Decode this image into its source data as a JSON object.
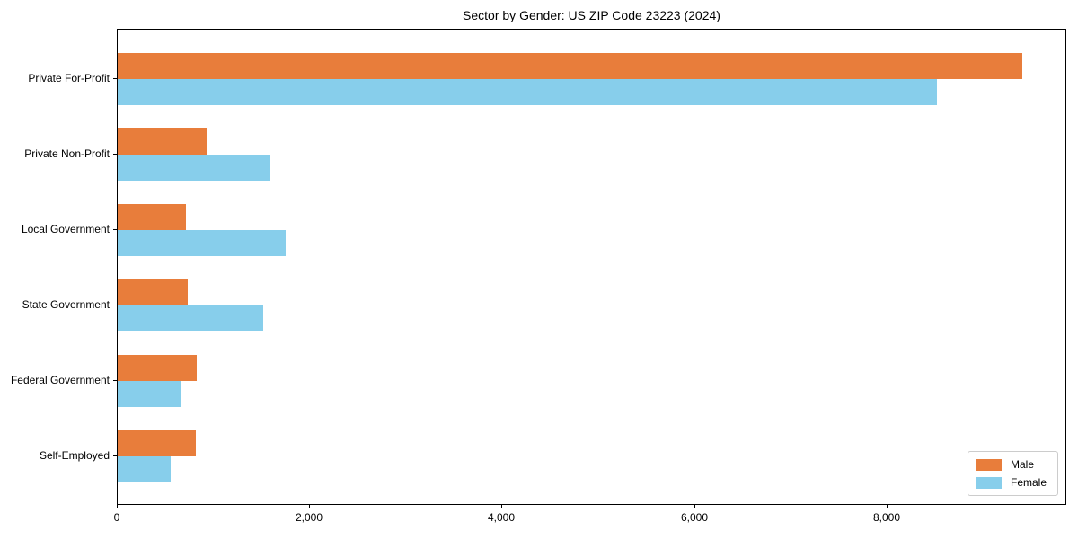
{
  "chart_data": {
    "type": "bar",
    "orientation": "horizontal",
    "title": "Sector by Gender: US ZIP Code 23223 (2024)",
    "categories": [
      "Private For-Profit",
      "Private Non-Profit",
      "Local Government",
      "State Government",
      "Federal Government",
      "Self-Employed"
    ],
    "series": [
      {
        "name": "Male",
        "color": "#e87d3b",
        "values": [
          9400,
          920,
          710,
          730,
          820,
          810
        ]
      },
      {
        "name": "Female",
        "color": "#87ceeb",
        "values": [
          8520,
          1590,
          1750,
          1510,
          660,
          550
        ]
      }
    ],
    "xlabel": "",
    "ylabel": "",
    "xlim": [
      0,
      9870
    ],
    "xticks": [
      0,
      2000,
      4000,
      6000,
      8000
    ],
    "xtick_labels": [
      "0",
      "2,000",
      "4,000",
      "6,000",
      "8,000"
    ],
    "grid": false,
    "legend_position": "lower right",
    "background_color": "#ffffff",
    "spine_color": "#000000"
  }
}
